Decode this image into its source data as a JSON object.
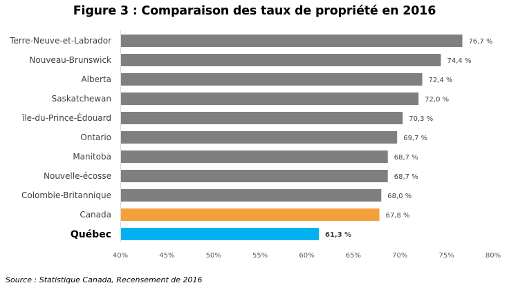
{
  "chart_data": {
    "type": "bar",
    "orientation": "horizontal",
    "title": "Figure 3 : Comparaison des taux de propriété en 2016",
    "xlabel": "",
    "ylabel": "",
    "xlim": [
      40,
      80
    ],
    "x_ticks": [
      "40%",
      "45%",
      "50%",
      "55%",
      "60%",
      "65%",
      "70%",
      "75%",
      "80%"
    ],
    "x_tick_values": [
      40,
      45,
      50,
      55,
      60,
      65,
      70,
      75,
      80
    ],
    "grid": false,
    "legend": "none",
    "categories": [
      "Terre-Neuve-et-Labrador",
      "Nouveau-Brunswick",
      "Alberta",
      "Saskatchewan",
      "île-du-Prince-Édouard",
      "Ontario",
      "Manitoba",
      "Nouvelle-écosse",
      "Colombie-Britannique",
      "Canada",
      "Québec"
    ],
    "values": [
      76.7,
      74.4,
      72.4,
      72.0,
      70.3,
      69.7,
      68.7,
      68.7,
      68.0,
      67.8,
      61.3
    ],
    "value_labels": [
      "76,7 %",
      "74,4 %",
      "72,4 %",
      "72,0 %",
      "70,3 %",
      "69,7 %",
      "68,7 %",
      "68,7 %",
      "68,0 %",
      "67,8 %",
      "61,3 %"
    ],
    "colors": [
      "#7f7f7f",
      "#7f7f7f",
      "#7f7f7f",
      "#7f7f7f",
      "#7f7f7f",
      "#7f7f7f",
      "#7f7f7f",
      "#7f7f7f",
      "#7f7f7f",
      "#f4a03c",
      "#00b0f0"
    ],
    "highlight": [
      "Canada",
      "Québec"
    ],
    "bold_categories": [
      "Québec"
    ]
  },
  "source": "Source : Statistique Canada, Recensement de 2016"
}
